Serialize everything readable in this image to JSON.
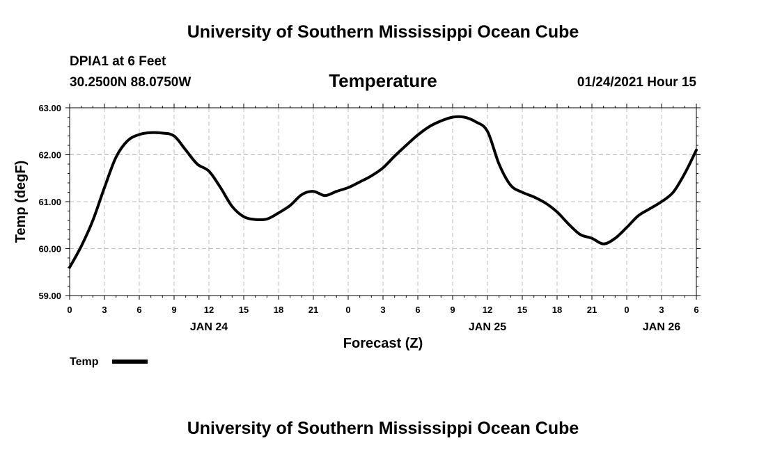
{
  "header": {
    "title": "University of Southern Mississippi Ocean Cube",
    "station": "DPIA1 at 6 Feet",
    "coords": "30.2500N 88.0750W",
    "datetime": "01/24/2021 Hour 15"
  },
  "footer": {
    "title": "University of Southern Mississippi Ocean Cube"
  },
  "chart_data": {
    "type": "line",
    "title": "Temperature",
    "xlabel": "Forecast (Z)",
    "ylabel": "Temp (degF)",
    "ylim": [
      59.0,
      63.0
    ],
    "xlim": [
      0,
      54
    ],
    "yticks": [
      "59.00",
      "60.00",
      "61.00",
      "62.00",
      "63.00"
    ],
    "xtick_labels": [
      "0",
      "3",
      "6",
      "9",
      "12",
      "15",
      "18",
      "21",
      "0",
      "3",
      "6",
      "9",
      "12",
      "15",
      "18",
      "21",
      "0",
      "3",
      "6"
    ],
    "date_labels": [
      {
        "label": "JAN 24",
        "at": 12
      },
      {
        "label": "JAN 25",
        "at": 36
      },
      {
        "label": "JAN 26",
        "at": 51
      }
    ],
    "grid": true,
    "legend": {
      "position": "bottom-left",
      "entries": [
        "Temp"
      ]
    },
    "series": [
      {
        "name": "Temp",
        "color": "#000000",
        "x": [
          0,
          1,
          2,
          3,
          4,
          5,
          6,
          7,
          8,
          9,
          10,
          11,
          12,
          13,
          14,
          15,
          16,
          17,
          18,
          19,
          20,
          21,
          22,
          23,
          24,
          25,
          26,
          27,
          28,
          29,
          30,
          31,
          32,
          33,
          34,
          35,
          36,
          37,
          38,
          39,
          40,
          41,
          42,
          43,
          44,
          45,
          46,
          47,
          48,
          49,
          50,
          51,
          52,
          53,
          54
        ],
        "values": [
          59.6,
          60.05,
          60.6,
          61.3,
          61.95,
          62.3,
          62.43,
          62.47,
          62.46,
          62.4,
          62.1,
          61.8,
          61.65,
          61.3,
          60.9,
          60.68,
          60.62,
          60.63,
          60.76,
          60.92,
          61.15,
          61.22,
          61.13,
          61.22,
          61.3,
          61.42,
          61.55,
          61.72,
          61.97,
          62.2,
          62.42,
          62.6,
          62.72,
          62.8,
          62.8,
          62.7,
          62.5,
          61.8,
          61.35,
          61.2,
          61.1,
          60.97,
          60.78,
          60.52,
          60.3,
          60.22,
          60.1,
          60.22,
          60.45,
          60.7,
          60.85,
          61.0,
          61.2,
          61.6,
          62.1
        ]
      }
    ]
  }
}
